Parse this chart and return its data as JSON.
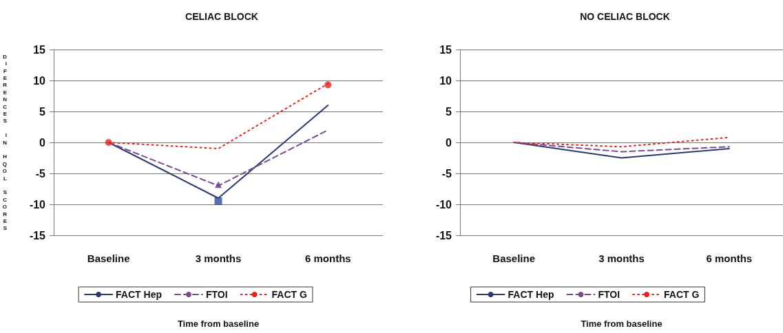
{
  "chart_data": [
    {
      "type": "line",
      "title": "CELIAC BLOCK",
      "xlabel": "Time from baseline",
      "ylabel": "DIFERENCES IN HQOL SCORES",
      "categories": [
        "Baseline",
        "3 months",
        "6 months"
      ],
      "ylim": [
        -15,
        15
      ],
      "yticks": [
        -15,
        -10,
        -5,
        0,
        5,
        10,
        15
      ],
      "grid": "y",
      "legend": "bottom",
      "marker": "none",
      "series": [
        {
          "name": "FACT Hep",
          "color": "#2b3870",
          "line_style": "solid",
          "values": [
            0,
            -9,
            6
          ]
        },
        {
          "name": "FTOI",
          "color": "#7a4a8e",
          "line_style": "dashed",
          "values": [
            0,
            -7,
            2
          ]
        },
        {
          "name": "FACT G",
          "color": "#e3241d",
          "line_style": "dotted",
          "values": [
            0,
            -1,
            9.5
          ]
        },
        {
          "type": "scatter",
          "color": "#e3241d",
          "marker": "circle",
          "values": [
            0,
            null,
            9.3
          ]
        },
        {
          "type": "scatter",
          "color": "#6a3a80",
          "marker": "triangle",
          "values": [
            null,
            -6.8,
            null
          ]
        },
        {
          "type": "scatter",
          "color": "#2e4a9e",
          "marker": "square",
          "values": [
            null,
            -9.5,
            null
          ]
        }
      ]
    },
    {
      "type": "line",
      "title": "NO CELIAC BLOCK",
      "xlabel": "Time from baseline",
      "categories": [
        "Baseline",
        "3 months",
        "6 months"
      ],
      "ylim": [
        -15,
        15
      ],
      "yticks": [
        -15,
        -10,
        -5,
        0,
        5,
        10,
        15
      ],
      "grid": "y",
      "legend": "bottom",
      "marker": "none",
      "series": [
        {
          "name": "FACT Hep",
          "color": "#2b3870",
          "line_style": "solid",
          "values": [
            0,
            -2.5,
            -1
          ]
        },
        {
          "name": "FTOI",
          "color": "#7a4a8e",
          "line_style": "dashed",
          "values": [
            0,
            -1.5,
            -0.7
          ]
        },
        {
          "name": "FACT G",
          "color": "#e3241d",
          "line_style": "dotted",
          "values": [
            0,
            -0.7,
            0.8
          ]
        }
      ]
    }
  ]
}
